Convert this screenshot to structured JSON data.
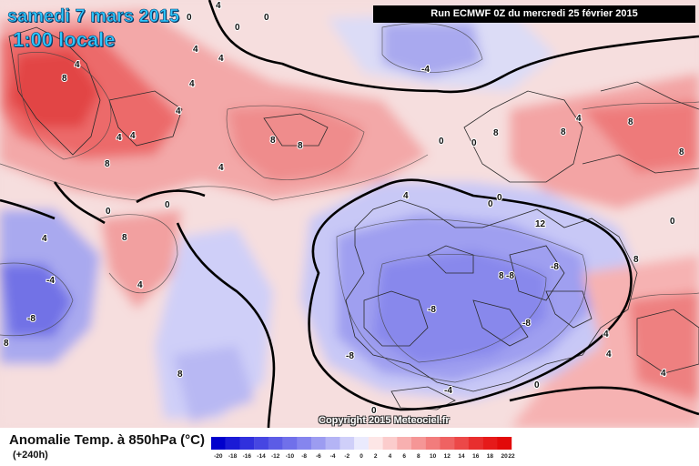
{
  "header": {
    "date": "samedi 7 mars 2015",
    "time": "1:00 locale",
    "run": "Run ECMWF 0Z du mercredi 25 février 2015"
  },
  "footer": {
    "legend_title": "Anomalie Temp. à 850hPa (°C)",
    "lead_time": "(+240h)",
    "copyright": "Copyright 2015 Meteociel.fr"
  },
  "legend": {
    "ticks": [
      "-20",
      "-18",
      "-16",
      "-14",
      "-12",
      "-10",
      "-8",
      "-6",
      "-4",
      "-2",
      "0",
      "2",
      "4",
      "6",
      "8",
      "10",
      "12",
      "14",
      "16",
      "18",
      "20",
      "22"
    ],
    "colors": [
      "#0000cc",
      "#1a1ad6",
      "#3030dd",
      "#4646e2",
      "#5c5ce6",
      "#7070ea",
      "#8585ee",
      "#9c9cf1",
      "#b4b4f5",
      "#cfcff9",
      "#eaeafd",
      "#fde6e6",
      "#fbcccc",
      "#f8b0b0",
      "#f59696",
      "#f27c7c",
      "#ef6262",
      "#ec4848",
      "#e82e2e",
      "#e61a1a",
      "#e20a0a"
    ]
  },
  "map": {
    "contour_labels": [
      "0",
      "0",
      "0",
      "0",
      "0",
      "0",
      "0",
      "0",
      "0",
      "0",
      "0",
      "0",
      "4",
      "4",
      "4",
      "4",
      "4",
      "4",
      "4",
      "4",
      "4",
      "4",
      "4",
      "4",
      "4",
      "4",
      "4",
      "4",
      "8",
      "8",
      "8",
      "8",
      "8",
      "8",
      "8",
      "8",
      "8",
      "8",
      "8",
      "8",
      "8",
      "12",
      "-4",
      "-4",
      "-4",
      "-8",
      "-8",
      "-8",
      "-8",
      "-8",
      "-8",
      "-8",
      "-12"
    ]
  }
}
